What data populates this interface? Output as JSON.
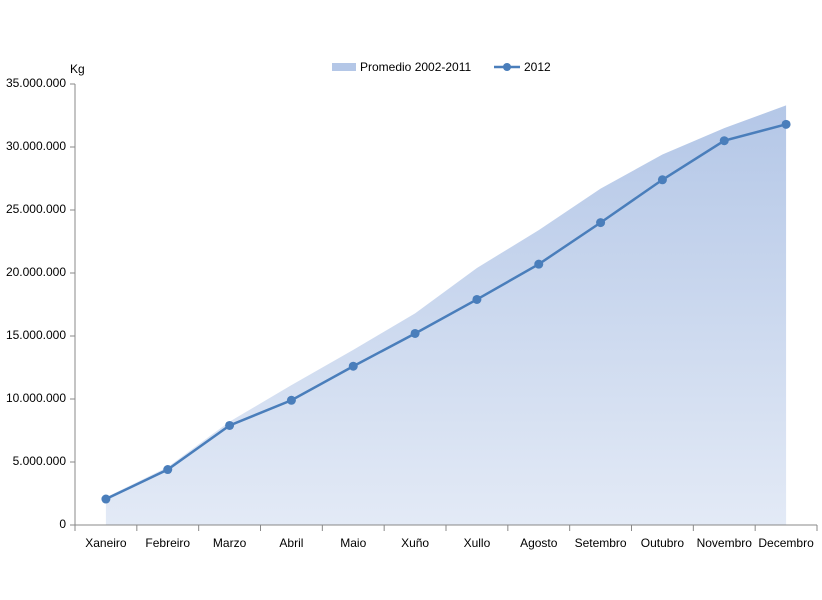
{
  "chart_data": {
    "type": "line",
    "y_label": "Kg",
    "categories": [
      "Xaneiro",
      "Febreiro",
      "Marzo",
      "Abril",
      "Maio",
      "Xuño",
      "Xullo",
      "Agosto",
      "Setembro",
      "Outubro",
      "Novembro",
      "Decembro"
    ],
    "series": [
      {
        "name": "Promedio 2002-2011",
        "type": "area",
        "color": "#b4c7e7",
        "values": [
          2200000,
          4600000,
          8200000,
          11100000,
          13900000,
          16800000,
          20400000,
          23400000,
          26700000,
          29400000,
          31500000,
          33300000
        ]
      },
      {
        "name": "2012",
        "type": "line",
        "color": "#4a7ebb",
        "values": [
          2060000,
          4400000,
          7900000,
          9900000,
          12600000,
          15200000,
          17900000,
          20700000,
          24000000,
          27400000,
          30500000,
          31800000
        ]
      }
    ],
    "ylim": [
      0,
      35000000
    ],
    "yticks": [
      {
        "value": 0,
        "label": "0"
      },
      {
        "value": 5000000,
        "label": "5.000.000"
      },
      {
        "value": 10000000,
        "label": "10.000.000"
      },
      {
        "value": 15000000,
        "label": "15.000.000"
      },
      {
        "value": 20000000,
        "label": "20.000.000"
      },
      {
        "value": 25000000,
        "label": "25.000.000"
      },
      {
        "value": 30000000,
        "label": "30.000.000"
      },
      {
        "value": 35000000,
        "label": "35.000.000"
      }
    ],
    "grid": false,
    "legend": "top"
  }
}
